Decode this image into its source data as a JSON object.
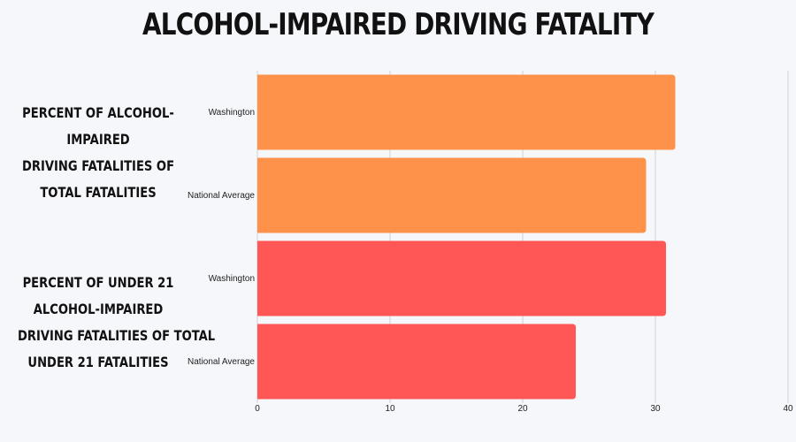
{
  "chart_data": {
    "type": "bar",
    "orientation": "horizontal",
    "title": "ALCOHOL-IMPAIRED DRIVING FATALITY",
    "groups": [
      {
        "label_lines": [
          "PERCENT OF ALCOHOL-",
          "IMPAIRED",
          "DRIVING FATALITIES OF",
          "TOTAL FATALITIES"
        ],
        "categories": [
          "Washington",
          "National Average"
        ],
        "values": [
          31.5,
          29.3
        ],
        "color": "#ff924a"
      },
      {
        "label_lines": [
          "PERCENT OF UNDER 21",
          "ALCOHOL-IMPAIRED",
          "DRIVING FATALITIES OF TOTAL",
          "UNDER 21 FATALITIES"
        ],
        "categories": [
          "Washington",
          "National Average"
        ],
        "values": [
          30.8,
          24.0
        ],
        "color": "#ff5656"
      }
    ],
    "x_ticks": [
      "0",
      "10",
      "20",
      "30",
      "40"
    ],
    "xlim": [
      0,
      40
    ],
    "grid": true,
    "legend": "none"
  }
}
